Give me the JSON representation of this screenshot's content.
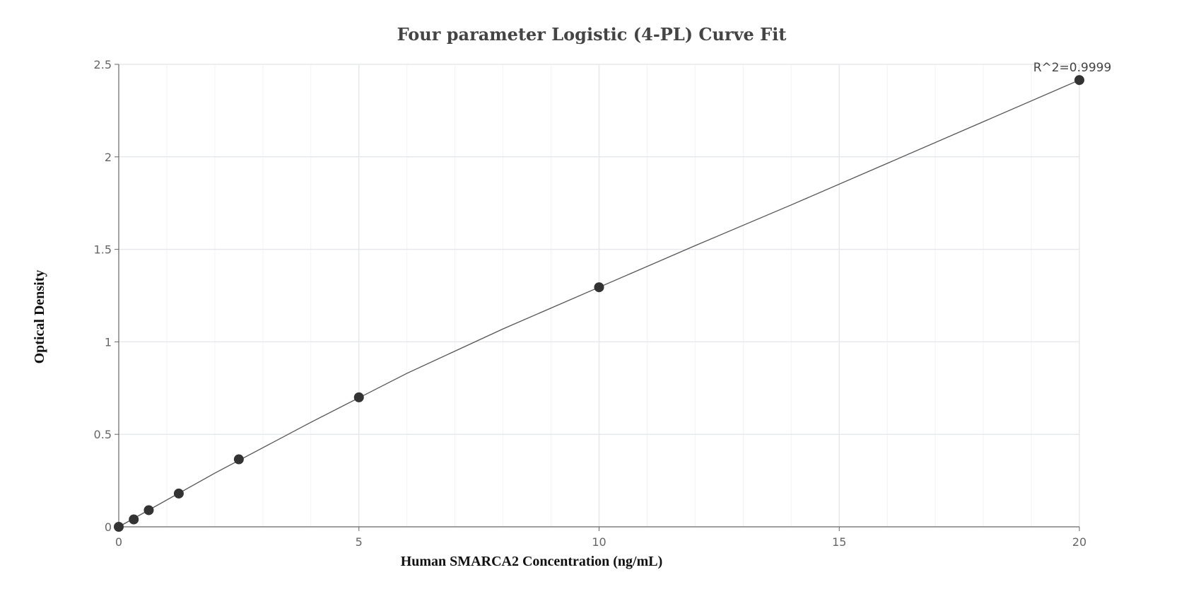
{
  "chart_data": {
    "type": "scatter",
    "title": "Four parameter Logistic (4-PL) Curve Fit",
    "xlabel": "Human SMARCA2 Concentration (ng/mL)",
    "ylabel": "Optical Density",
    "xlim": [
      0,
      20
    ],
    "ylim": [
      0,
      2.5
    ],
    "x_ticks": [
      0,
      5,
      10,
      15,
      20
    ],
    "x_tick_labels": [
      "0",
      "5",
      "10",
      "15",
      "20"
    ],
    "y_ticks": [
      0,
      0.5,
      1,
      1.5,
      2,
      2.5
    ],
    "y_tick_labels": [
      "0",
      "0.5",
      "1",
      "1.5",
      "2",
      "2.5"
    ],
    "grid": true,
    "series": [
      {
        "x": [
          0,
          0.3125,
          0.625,
          1.25,
          2.5,
          5,
          10,
          20
        ],
        "y": [
          0.0,
          0.04,
          0.09,
          0.18,
          0.365,
          0.7,
          1.295,
          2.415
        ]
      }
    ],
    "fit_curve": {
      "type": "4-PL",
      "x": [
        0,
        2,
        4,
        6,
        8,
        10,
        12,
        14,
        16,
        18,
        20
      ],
      "y": [
        0.0,
        0.29,
        0.565,
        0.83,
        1.07,
        1.295,
        1.52,
        1.74,
        1.965,
        2.19,
        2.415
      ]
    },
    "annotations": [
      {
        "text": "R^2=0.9999",
        "x": 20,
        "y": 2.415
      }
    ],
    "colors": {
      "point": "#333333",
      "line": "#555555",
      "grid": "#e6e9ec",
      "minor_grid": "#f1f3f5",
      "axis": "#666666"
    }
  }
}
